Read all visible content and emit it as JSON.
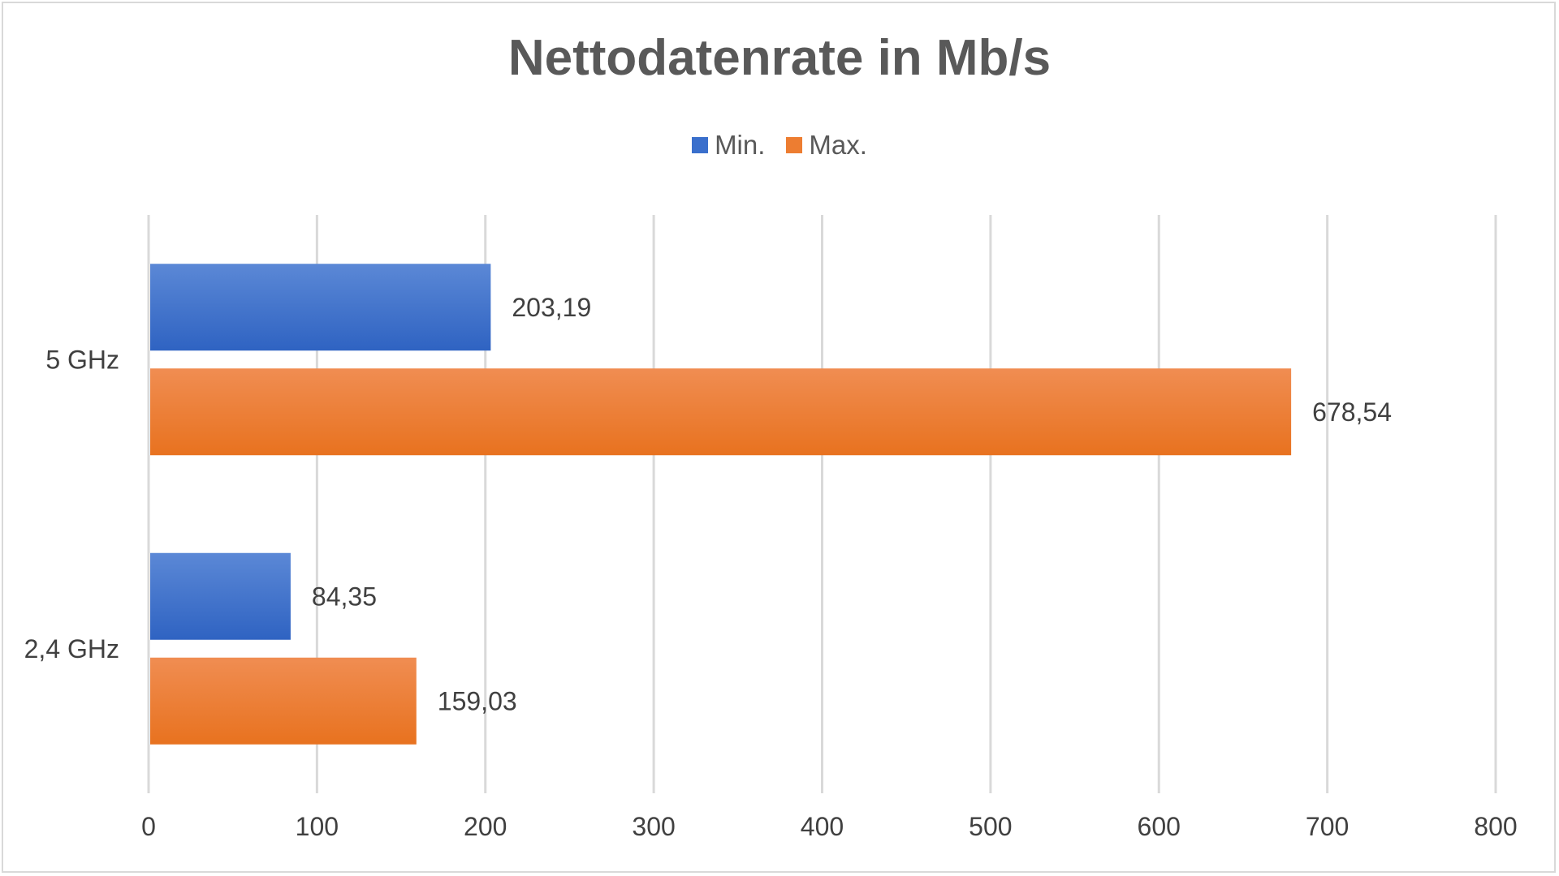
{
  "chart_data": {
    "type": "bar",
    "orientation": "horizontal",
    "title": "Nettodatenrate in Mb/s",
    "categories": [
      "5 GHz",
      "2,4 GHz"
    ],
    "series": [
      {
        "name": "Min.",
        "color": "#3a6fcc",
        "values": [
          203.19,
          84.35
        ],
        "labels": [
          "203,19",
          "84,35"
        ]
      },
      {
        "name": "Max.",
        "color": "#ed7d31",
        "values": [
          678.54,
          159.03
        ],
        "labels": [
          "678,54",
          "159,03"
        ]
      }
    ],
    "xlim": [
      0,
      800
    ],
    "xticks": [
      0,
      100,
      200,
      300,
      400,
      500,
      600,
      700,
      800
    ],
    "grid": true,
    "legend_position": "top-center"
  }
}
